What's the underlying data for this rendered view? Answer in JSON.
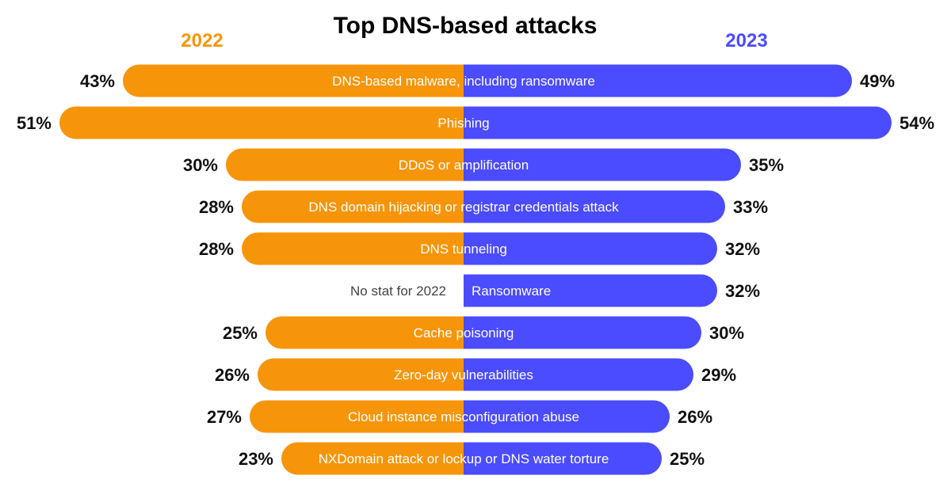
{
  "chart_data": {
    "type": "bar",
    "orientation": "horizontal-butterfly",
    "title": "Top DNS-based attacks",
    "unit": "%",
    "categories": [
      "DNS-based malware, including ransomware",
      "Phishing",
      "DDoS or amplification",
      "DNS domain hijacking or registrar credentials attack",
      "DNS tunneling",
      "Ransomware",
      "Cache poisoning",
      "Zero-day vulnerabilities",
      "Cloud instance misconfiguration abuse",
      "NXDomain attack or lockup or DNS water torture"
    ],
    "series": [
      {
        "name": "2022",
        "color": "#F7950A",
        "side": "left",
        "values": [
          43,
          51,
          30,
          28,
          28,
          null,
          25,
          26,
          27,
          23
        ]
      },
      {
        "name": "2023",
        "color": "#4B4BFF",
        "side": "right",
        "values": [
          49,
          54,
          35,
          33,
          32,
          32,
          30,
          29,
          26,
          25
        ]
      }
    ],
    "missing_label": "No stat for 2022"
  }
}
